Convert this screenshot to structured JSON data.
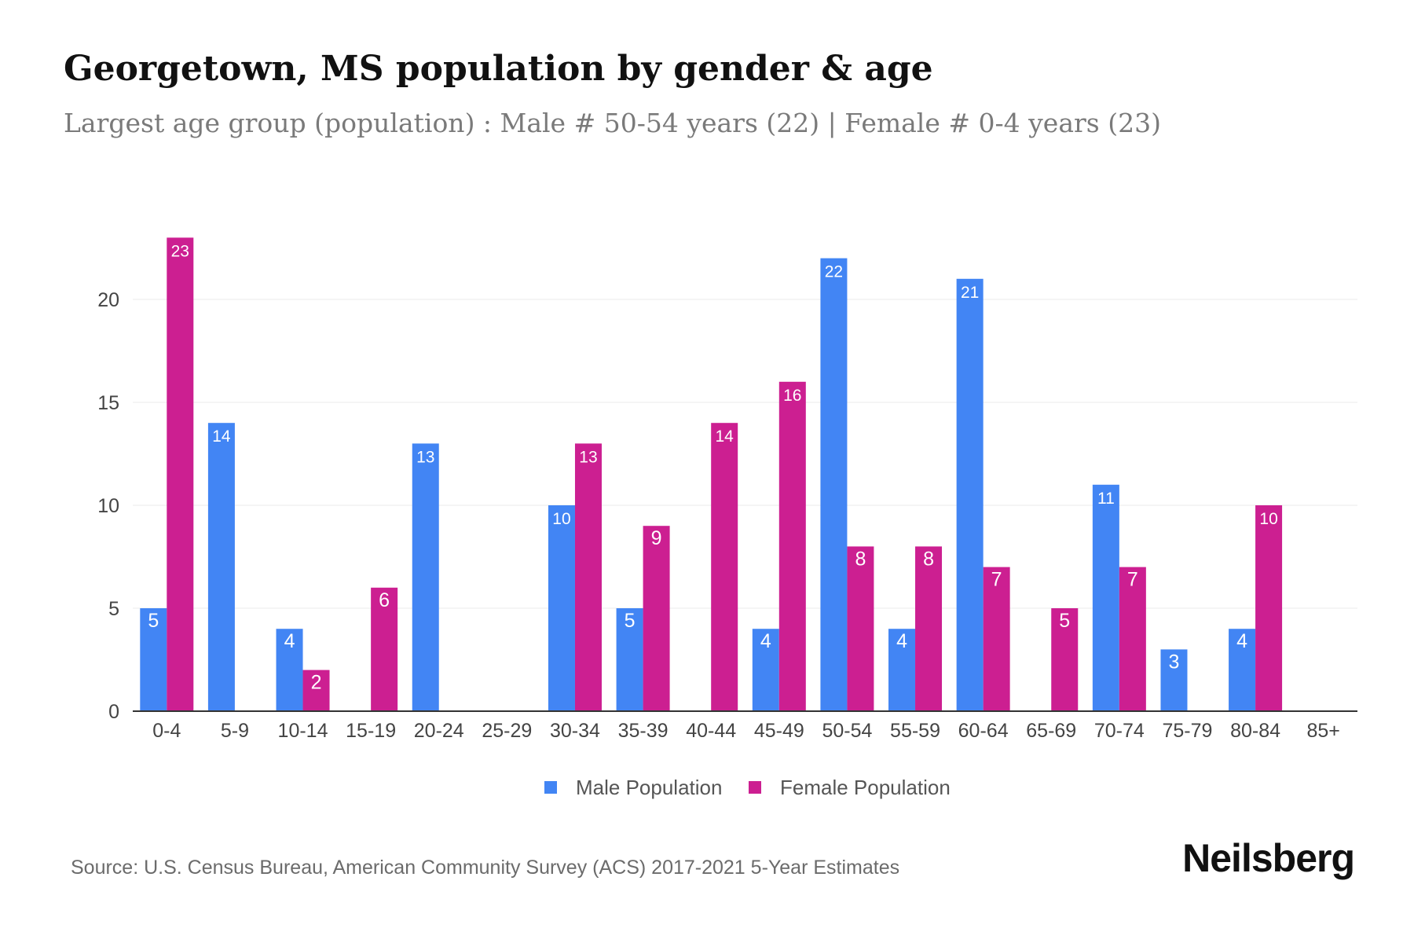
{
  "title": "Georgetown, MS population by gender & age",
  "subtitle": "Largest age group (population) : Male # 50-54 years (22) | Female # 0-4 years (23)",
  "source": "Source: U.S. Census Bureau, American Community Survey (ACS) 2017-2021 5-Year Estimates",
  "brand": "Neilsberg",
  "colors": {
    "male": "#4285f4",
    "female": "#cc1f91",
    "grid": "#ebebeb",
    "axis": "#333333",
    "tick_text": "#444444"
  },
  "chart_data": {
    "type": "bar",
    "categories": [
      "0-4",
      "5-9",
      "10-14",
      "15-19",
      "20-24",
      "25-29",
      "30-34",
      "35-39",
      "40-44",
      "45-49",
      "50-54",
      "55-59",
      "60-64",
      "65-69",
      "70-74",
      "75-79",
      "80-84",
      "85+"
    ],
    "series": [
      {
        "name": "Male Population",
        "values": [
          5,
          14,
          4,
          0,
          13,
          0,
          10,
          5,
          0,
          4,
          22,
          4,
          21,
          0,
          11,
          3,
          4,
          0
        ]
      },
      {
        "name": "Female Population",
        "values": [
          23,
          0,
          2,
          6,
          0,
          0,
          13,
          9,
          14,
          16,
          8,
          8,
          7,
          5,
          7,
          0,
          10,
          0
        ]
      }
    ],
    "yticks": [
      0,
      5,
      10,
      15,
      20
    ],
    "ylim": [
      0,
      23
    ],
    "grid": true,
    "legend_position": "bottom-center"
  }
}
